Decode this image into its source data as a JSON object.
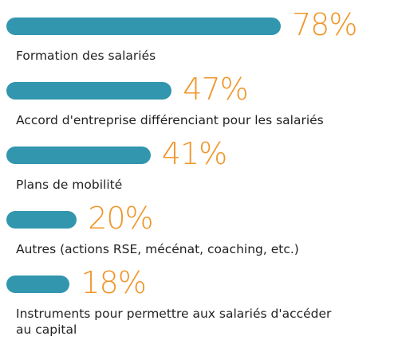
{
  "chart_data": {
    "type": "bar",
    "categories": [
      "Formation des salariés",
      "Accord d'entreprise différenciant pour les salariés",
      "Plans de mobilité",
      "Autres (actions RSE, mécénat, coaching, etc.)",
      "Instruments pour permettre aux salariés d'accéder au capital"
    ],
    "values": [
      78,
      47,
      41,
      20,
      18
    ],
    "value_labels": [
      "78%",
      "47%",
      "41%",
      "20%",
      "18%"
    ],
    "color": "#3196ae",
    "label_color": "#f0962a",
    "xlim": [
      0,
      100
    ]
  }
}
